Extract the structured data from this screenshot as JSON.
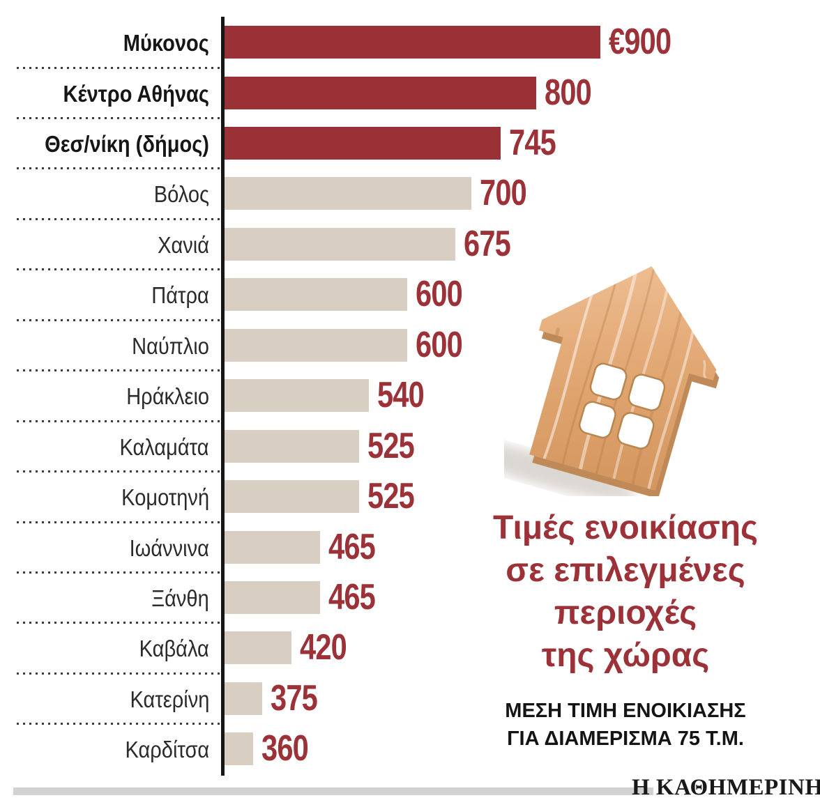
{
  "chart_data": {
    "type": "bar",
    "orientation": "horizontal",
    "title": "Τιμές ενοικίασης σε επιλεγμένες περιοχές της χώρας",
    "title_lines": [
      "Τιμές ενοικίασης",
      "σε επιλεγμένες",
      "περιοχές",
      "της χώρας"
    ],
    "subtitle_lines": [
      "ΜΕΣΗ ΤΙΜΗ ΕΝΟΙΚΙΑΣΗΣ",
      "ΓΙΑ ΔΙΑΜΕΡΙΣΜΑ 75 Τ.Μ."
    ],
    "unit": "€ / month",
    "categories": [
      "Μύκονος",
      "Κέντρο Αθήνας",
      "Θεσ/νίκη (δήμος)",
      "Βόλος",
      "Χανιά",
      "Πάτρα",
      "Ναύπλιο",
      "Ηράκλειο",
      "Καλαμάτα",
      "Κομοτηνή",
      "Ιωάννινα",
      "Ξάνθη",
      "Καβάλα",
      "Κατερίνη",
      "Καρδίτσα"
    ],
    "values": [
      900,
      800,
      745,
      700,
      675,
      600,
      600,
      540,
      525,
      525,
      465,
      465,
      420,
      375,
      360
    ],
    "value_labels": [
      "€900",
      "800",
      "745",
      "700",
      "675",
      "600",
      "600",
      "540",
      "525",
      "525",
      "465",
      "465",
      "420",
      "375",
      "360"
    ],
    "emphasized": [
      true,
      true,
      true,
      false,
      false,
      false,
      false,
      false,
      false,
      false,
      false,
      false,
      false,
      false,
      false
    ],
    "legend_position": "none",
    "grid": "dotted-row-separators",
    "colors": {
      "bar_highlight": "#993137",
      "bar_normal": "#d8cec2",
      "value_text": "#9c3138",
      "title_text": "#9c3138",
      "label_text": "#2b2b2b",
      "label_text_emphasized": "#161616",
      "axis": "#161616"
    }
  },
  "illustration": {
    "name": "wooden-house-cutout-photo"
  },
  "footer": {
    "source_label": "Η ΚΑΘΗΜΕΡΙΝΗ"
  }
}
